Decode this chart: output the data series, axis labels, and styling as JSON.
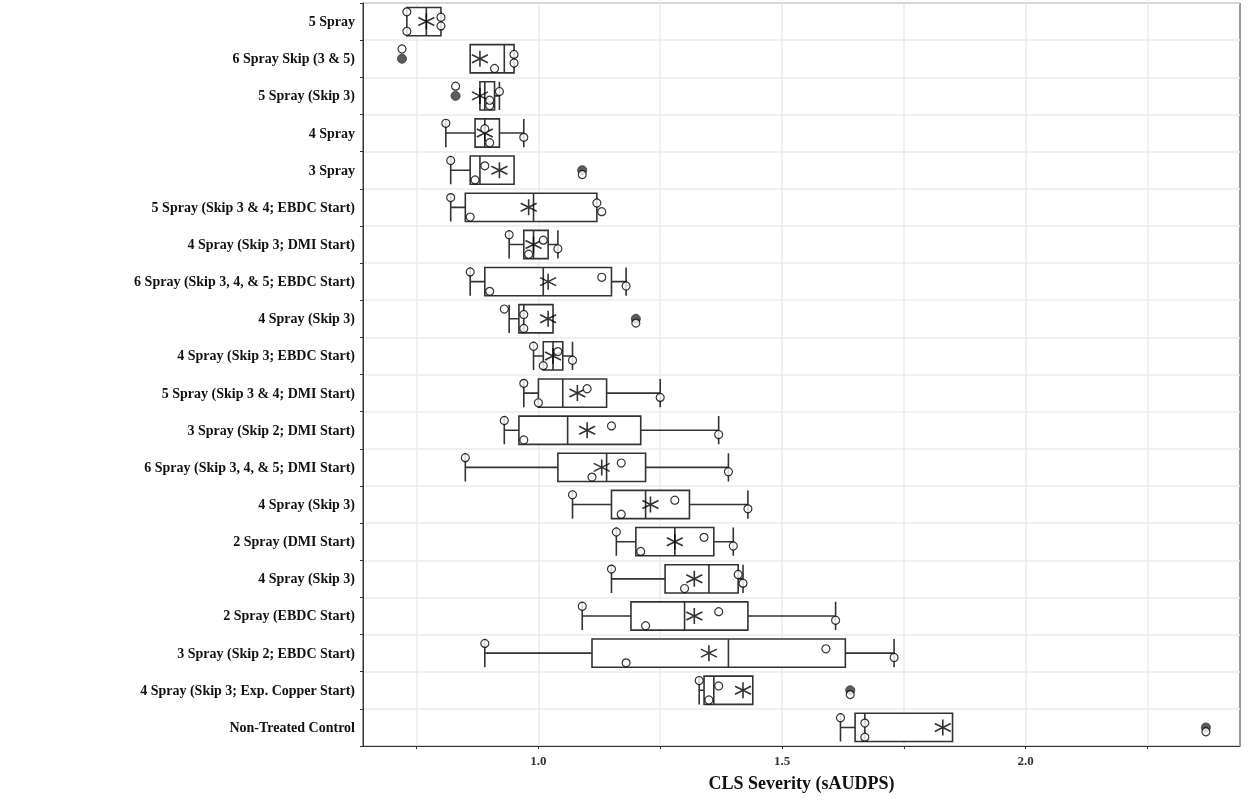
{
  "chart_data": {
    "type": "box",
    "orientation": "horizontal",
    "xlabel": "CLS Severity (sAUDPS)",
    "categories": [
      "5 Spray",
      "6 Spray Skip (3 & 5)",
      "5 Spray (Skip 3)",
      "4 Spray",
      "3 Spray",
      "5 Spray (Skip 3 & 4; EBDC Start)",
      "4 Spray (Skip 3; DMI Start)",
      "6 Spray (Skip 3, 4, & 5; EBDC Start)",
      "4 Spray (Skip 3)",
      "4 Spray (Skip 3; EBDC Start)",
      "5 Spray (Skip 3 & 4; DMI Start)",
      "3 Spray (Skip 2; DMI Start)",
      "6 Spray (Skip 3, 4, & 5; DMI Start)",
      "4 Spray (Skip 3)",
      "2 Spray (DMI Start)",
      "4 Spray (Skip 3)",
      "2 Spray (EBDC Start)",
      "3 Spray (Skip 2; EBDC Start)",
      "4 Spray (Skip 3; Exp. Copper Start)",
      "Non-Treated Control"
    ],
    "xlim": [
      0.64,
      2.44
    ],
    "xticks": [
      {
        "value": 0.75,
        "label": null
      },
      {
        "value": 1,
        "label": "1.0"
      },
      {
        "value": 1.25,
        "label": null
      },
      {
        "value": 1.5,
        "label": "1.5"
      },
      {
        "value": 1.75,
        "label": null
      },
      {
        "value": 2,
        "label": "2.0"
      },
      {
        "value": 2.25,
        "label": null
      }
    ],
    "grid": true,
    "series": [
      {
        "color": "#333333",
        "boxes": [
          {
            "low": 0.73,
            "q1": 0.73,
            "median": 0.77,
            "q3": 0.8,
            "high": 0.8,
            "mean": 0.77
          },
          {
            "low": 0.86,
            "q1": 0.86,
            "median": 0.93,
            "q3": 0.95,
            "high": 0.95,
            "mean": 0.88,
            "outliers": [
              0.72
            ]
          },
          {
            "low": 0.88,
            "q1": 0.88,
            "median": 0.89,
            "q3": 0.91,
            "high": 0.92,
            "mean": 0.88,
            "outliers": [
              0.83
            ]
          },
          {
            "low": 0.81,
            "q1": 0.87,
            "median": 0.89,
            "q3": 0.92,
            "high": 0.97,
            "mean": 0.89
          },
          {
            "low": 0.82,
            "q1": 0.86,
            "median": 0.88,
            "q3": 0.95,
            "high": 0.95,
            "mean": 0.92,
            "outliers": [
              1.09
            ]
          },
          {
            "low": 0.82,
            "q1": 0.85,
            "median": 0.99,
            "q3": 1.12,
            "high": 1.12,
            "mean": 0.98
          },
          {
            "low": 0.94,
            "q1": 0.97,
            "median": 0.99,
            "q3": 1.02,
            "high": 1.04,
            "mean": 0.99
          },
          {
            "low": 0.86,
            "q1": 0.89,
            "median": 1.01,
            "q3": 1.15,
            "high": 1.18,
            "mean": 1.02
          },
          {
            "low": 0.94,
            "q1": 0.96,
            "median": 0.97,
            "q3": 1.03,
            "high": 1.03,
            "mean": 1.02,
            "outliers": [
              1.2
            ]
          },
          {
            "low": 0.99,
            "q1": 1.01,
            "median": 1.03,
            "q3": 1.05,
            "high": 1.07,
            "mean": 1.03
          },
          {
            "low": 0.97,
            "q1": 1.0,
            "median": 1.05,
            "q3": 1.14,
            "high": 1.25,
            "mean": 1.08
          },
          {
            "low": 0.93,
            "q1": 0.96,
            "median": 1.06,
            "q3": 1.21,
            "high": 1.37,
            "mean": 1.1
          },
          {
            "low": 0.85,
            "q1": 1.04,
            "median": 1.14,
            "q3": 1.22,
            "high": 1.39,
            "mean": 1.13
          },
          {
            "low": 1.07,
            "q1": 1.15,
            "median": 1.22,
            "q3": 1.31,
            "high": 1.43,
            "mean": 1.23
          },
          {
            "low": 1.16,
            "q1": 1.2,
            "median": 1.28,
            "q3": 1.36,
            "high": 1.4,
            "mean": 1.28
          },
          {
            "low": 1.15,
            "q1": 1.26,
            "median": 1.35,
            "q3": 1.41,
            "high": 1.42,
            "mean": 1.32
          },
          {
            "low": 1.09,
            "q1": 1.19,
            "median": 1.3,
            "q3": 1.43,
            "high": 1.61,
            "mean": 1.32
          },
          {
            "low": 0.89,
            "q1": 1.11,
            "median": 1.39,
            "q3": 1.63,
            "high": 1.73,
            "mean": 1.35
          },
          {
            "low": 1.33,
            "q1": 1.34,
            "median": 1.36,
            "q3": 1.44,
            "high": 1.44,
            "mean": 1.42,
            "outliers": [
              1.64
            ]
          },
          {
            "low": 1.62,
            "q1": 1.65,
            "median": 1.67,
            "q3": 1.85,
            "high": 1.85,
            "mean": 1.83,
            "outliers": [
              2.37
            ]
          }
        ]
      },
      {
        "type": "scatter",
        "color": "#000000",
        "marker": "circle",
        "values": [
          0.73,
          0.72,
          0.83,
          0.81,
          0.82,
          0.82,
          0.94,
          0.86,
          0.93,
          0.99,
          0.97,
          0.93,
          0.85,
          1.07,
          1.16,
          1.15,
          1.09,
          0.89,
          1.33,
          1.62
        ]
      },
      {
        "type": "scatter",
        "color": "#000000",
        "marker": "circle",
        "values": [
          0.73,
          0.91,
          0.9,
          0.9,
          0.87,
          0.86,
          0.98,
          0.9,
          0.97,
          1.01,
          1.0,
          0.97,
          1.11,
          1.17,
          1.21,
          1.3,
          1.22,
          1.18,
          1.35,
          1.67
        ]
      },
      {
        "type": "scatter",
        "color": "#000000",
        "marker": "circle",
        "values": [
          0.8,
          0.95,
          0.92,
          0.89,
          0.89,
          1.12,
          1.01,
          1.13,
          0.97,
          1.04,
          1.1,
          1.15,
          1.17,
          1.28,
          1.34,
          1.41,
          1.37,
          1.59,
          1.37,
          1.67
        ]
      },
      {
        "type": "scatter",
        "color": "#000000",
        "marker": "circle",
        "values": [
          0.8,
          0.95,
          0.9,
          0.97,
          1.09,
          1.13,
          1.04,
          1.18,
          1.2,
          1.07,
          1.25,
          1.37,
          1.39,
          1.43,
          1.4,
          1.42,
          1.61,
          1.73,
          1.64,
          2.37
        ]
      }
    ]
  }
}
